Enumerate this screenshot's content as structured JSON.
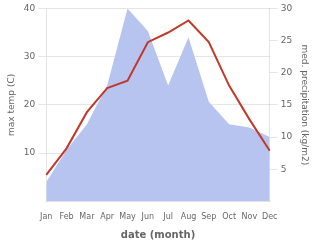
{
  "chart_data": {
    "type": "line",
    "xlabel": "date (month)",
    "ylabel": "max temp (C)",
    "y2label": "med. precipitation (kg/m2)",
    "categories": [
      "Jan",
      "Feb",
      "Mar",
      "Apr",
      "May",
      "Jun",
      "Jul",
      "Aug",
      "Sep",
      "Oct",
      "Nov",
      "Dec"
    ],
    "series": [
      {
        "type": "area",
        "axis": "y2",
        "color": "#b8c4f0",
        "values": [
          3.0,
          8.0,
          12.0,
          18.0,
          30.0,
          26.5,
          18.0,
          25.5,
          15.5,
          12.0,
          11.5,
          10.0
        ]
      },
      {
        "type": "line",
        "color": "#c0392b",
        "values": [
          5.5,
          11.0,
          18.5,
          23.5,
          25.0,
          33.0,
          35.0,
          37.5,
          33.0,
          24.0,
          17.0,
          10.5
        ]
      }
    ],
    "ylim": [
      0,
      40
    ],
    "yticks": [
      10,
      20,
      30,
      40
    ],
    "y2lim": [
      0,
      30
    ],
    "y2ticks": [
      5,
      10,
      15,
      20,
      25,
      30
    ],
    "grid": true
  }
}
